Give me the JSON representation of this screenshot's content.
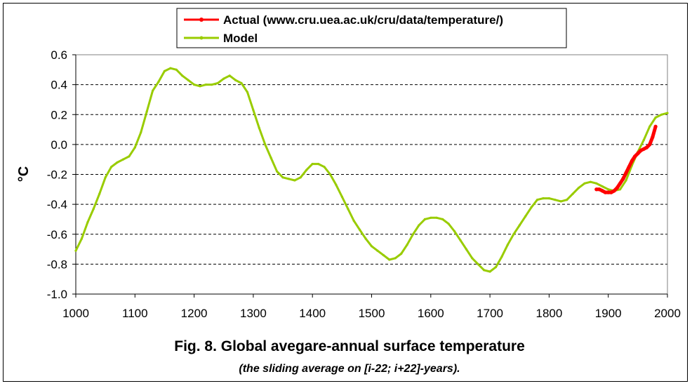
{
  "chart_data": {
    "type": "line",
    "title": "Fig. 8. Global avegare-annual surface temperature",
    "subtitle": "(the sliding average on [i-22; i+22]-years).",
    "xlabel": "",
    "ylabel": "°C",
    "xlim": [
      1000,
      2000
    ],
    "ylim": [
      -1.0,
      0.6
    ],
    "xticks": [
      1000,
      1100,
      1200,
      1300,
      1400,
      1500,
      1600,
      1700,
      1800,
      1900,
      2000
    ],
    "yticks": [
      -1.0,
      -0.8,
      -0.6,
      -0.4,
      -0.2,
      0.0,
      0.2,
      0.4,
      0.6
    ],
    "ytick_labels": [
      "-1.0",
      "-0.8",
      "-0.6",
      "-0.4",
      "-0.2",
      "0.0",
      "0.2",
      "0.4",
      "0.6"
    ],
    "grid": "horizontal dashed",
    "legend_position": "top-center",
    "series": [
      {
        "name": "Actual (www.cru.uea.ac.uk/cru/data/temperature/)",
        "color": "#ff0000",
        "x": [
          1880,
          1885,
          1890,
          1895,
          1900,
          1905,
          1910,
          1915,
          1920,
          1925,
          1930,
          1935,
          1940,
          1945,
          1950,
          1955,
          1960,
          1965,
          1970,
          1975,
          1980
        ],
        "y": [
          -0.3,
          -0.3,
          -0.31,
          -0.32,
          -0.32,
          -0.32,
          -0.31,
          -0.29,
          -0.26,
          -0.23,
          -0.19,
          -0.15,
          -0.11,
          -0.08,
          -0.06,
          -0.04,
          -0.03,
          -0.02,
          0.0,
          0.05,
          0.12
        ]
      },
      {
        "name": "Model",
        "color": "#99cc00",
        "x": [
          1000,
          1010,
          1020,
          1030,
          1040,
          1050,
          1060,
          1070,
          1080,
          1090,
          1100,
          1110,
          1120,
          1130,
          1140,
          1150,
          1160,
          1170,
          1180,
          1190,
          1200,
          1210,
          1220,
          1230,
          1240,
          1250,
          1260,
          1270,
          1280,
          1290,
          1300,
          1310,
          1320,
          1330,
          1340,
          1350,
          1360,
          1370,
          1380,
          1390,
          1400,
          1410,
          1420,
          1430,
          1440,
          1450,
          1460,
          1470,
          1480,
          1490,
          1500,
          1510,
          1520,
          1530,
          1540,
          1550,
          1560,
          1570,
          1580,
          1590,
          1600,
          1610,
          1620,
          1630,
          1640,
          1650,
          1660,
          1670,
          1680,
          1690,
          1700,
          1710,
          1720,
          1730,
          1740,
          1750,
          1760,
          1770,
          1780,
          1790,
          1800,
          1810,
          1820,
          1830,
          1840,
          1850,
          1860,
          1870,
          1880,
          1890,
          1900,
          1910,
          1920,
          1930,
          1940,
          1950,
          1960,
          1970,
          1980,
          1990,
          2000
        ],
        "y": [
          -0.71,
          -0.63,
          -0.52,
          -0.43,
          -0.33,
          -0.22,
          -0.15,
          -0.12,
          -0.1,
          -0.08,
          -0.02,
          0.08,
          0.22,
          0.36,
          0.42,
          0.49,
          0.51,
          0.5,
          0.46,
          0.43,
          0.4,
          0.39,
          0.4,
          0.4,
          0.41,
          0.44,
          0.46,
          0.43,
          0.41,
          0.35,
          0.23,
          0.11,
          0.0,
          -0.09,
          -0.18,
          -0.22,
          -0.23,
          -0.24,
          -0.22,
          -0.17,
          -0.13,
          -0.13,
          -0.15,
          -0.2,
          -0.27,
          -0.35,
          -0.43,
          -0.51,
          -0.57,
          -0.63,
          -0.68,
          -0.71,
          -0.74,
          -0.77,
          -0.76,
          -0.73,
          -0.67,
          -0.6,
          -0.54,
          -0.5,
          -0.49,
          -0.49,
          -0.5,
          -0.53,
          -0.58,
          -0.64,
          -0.7,
          -0.76,
          -0.8,
          -0.84,
          -0.85,
          -0.82,
          -0.75,
          -0.67,
          -0.6,
          -0.54,
          -0.48,
          -0.42,
          -0.37,
          -0.36,
          -0.36,
          -0.37,
          -0.38,
          -0.37,
          -0.33,
          -0.29,
          -0.26,
          -0.25,
          -0.26,
          -0.28,
          -0.3,
          -0.31,
          -0.3,
          -0.24,
          -0.14,
          -0.05,
          0.03,
          0.12,
          0.18,
          0.2,
          0.21
        ]
      }
    ]
  }
}
